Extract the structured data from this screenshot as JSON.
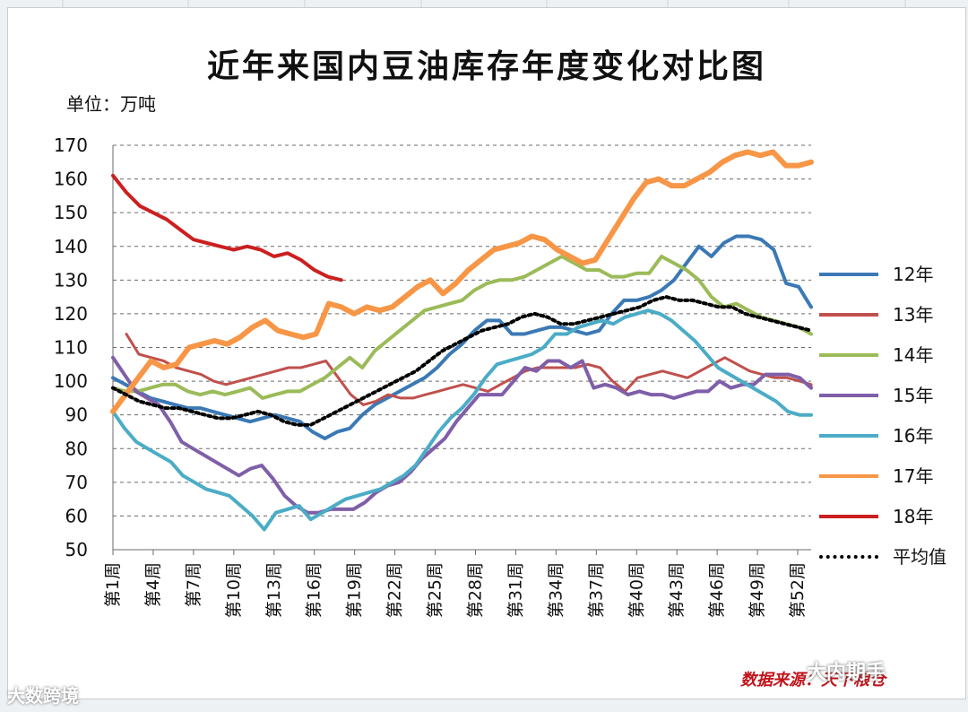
{
  "chart_data": {
    "type": "line",
    "title": "近年来国内豆油库存年度变化对比图",
    "unit": "单位：万吨",
    "ylim": [
      50,
      170
    ],
    "yticks": [
      50,
      60,
      70,
      80,
      90,
      100,
      110,
      120,
      130,
      140,
      150,
      160,
      170
    ],
    "xlabels": [
      "第1周",
      "第4周",
      "第7周",
      "第10周",
      "第13周",
      "第16周",
      "第19周",
      "第22周",
      "第25周",
      "第28周",
      "第31周",
      "第34周",
      "第37周",
      "第40周",
      "第43周",
      "第46周",
      "第49周",
      "第52周"
    ],
    "xlabel_weeks": [
      1,
      4,
      7,
      10,
      13,
      16,
      19,
      22,
      25,
      28,
      31,
      34,
      37,
      40,
      43,
      46,
      49,
      52
    ],
    "series": [
      {
        "name": "12年",
        "color": "#3b79b5",
        "dashed": false,
        "width": 4,
        "start": 1,
        "values": [
          101,
          99,
          97,
          95,
          94,
          93,
          92,
          92,
          91,
          90,
          89,
          88,
          89,
          90,
          89,
          88,
          85,
          83,
          85,
          86,
          90,
          93,
          95,
          97,
          99,
          101,
          104,
          108,
          111,
          115,
          118,
          118,
          114,
          114,
          115,
          116,
          116,
          115,
          114,
          115,
          120,
          124,
          124,
          125,
          127,
          130,
          135,
          140,
          137,
          141,
          143,
          143,
          142,
          139,
          129,
          128,
          122
        ]
      },
      {
        "name": "13年",
        "color": "#c0504d",
        "dashed": false,
        "width": 3,
        "start": 2,
        "values": [
          114,
          108,
          107,
          106,
          104,
          103,
          102,
          100,
          99,
          100,
          101,
          102,
          103,
          104,
          104,
          105,
          106,
          101,
          96,
          93,
          94,
          96,
          95,
          95,
          96,
          97,
          98,
          99,
          98,
          97,
          99,
          101,
          103,
          104,
          104,
          104,
          104,
          105,
          104,
          100,
          97,
          101,
          102,
          103,
          102,
          101,
          103,
          105,
          107,
          105,
          103,
          102,
          101,
          101,
          100,
          99,
          98
        ]
      },
      {
        "name": "14年",
        "color": "#9bbb59",
        "dashed": false,
        "width": 4,
        "start": 1,
        "values": [
          98,
          97,
          97,
          98,
          99,
          99,
          97,
          96,
          97,
          96,
          97,
          98,
          95,
          96,
          97,
          97,
          99,
          101,
          104,
          107,
          104,
          109,
          112,
          115,
          118,
          121,
          122,
          123,
          124,
          127,
          129,
          130,
          130,
          131,
          133,
          135,
          137,
          135,
          133,
          133,
          131,
          131,
          132,
          132,
          137,
          135,
          133,
          130,
          125,
          122,
          123,
          121,
          119,
          118,
          117,
          116,
          114
        ]
      },
      {
        "name": "15年",
        "color": "#7f5fa8",
        "dashed": false,
        "width": 4,
        "start": 1,
        "values": [
          107,
          102,
          97,
          95,
          93,
          88,
          82,
          80,
          78,
          76,
          74,
          72,
          74,
          75,
          71,
          66,
          63,
          61,
          61,
          62,
          62,
          62,
          64,
          67,
          69,
          70,
          73,
          77,
          80,
          83,
          88,
          92,
          96,
          96,
          96,
          100,
          104,
          103,
          106,
          106,
          104,
          106,
          98,
          99,
          98,
          96,
          97,
          96,
          96,
          95,
          96,
          97,
          97,
          100,
          98,
          99,
          99,
          102,
          102,
          102,
          101,
          98
        ]
      },
      {
        "name": "16年",
        "color": "#4bacc6",
        "dashed": false,
        "width": 4,
        "start": 1,
        "values": [
          91,
          86,
          82,
          80,
          78,
          76,
          72,
          70,
          68,
          67,
          66,
          63,
          60,
          56,
          61,
          62,
          63,
          59,
          61,
          63,
          65,
          66,
          67,
          68,
          70,
          72,
          75,
          80,
          85,
          89,
          92,
          96,
          101,
          105,
          106,
          107,
          108,
          110,
          114,
          114,
          116,
          117,
          118,
          117,
          119,
          120,
          121,
          120,
          118,
          115,
          112,
          108,
          104,
          102,
          100,
          98,
          96,
          94,
          91,
          90,
          90
        ]
      },
      {
        "name": "17年",
        "color": "#f79646",
        "dashed": false,
        "width": 6,
        "start": 1,
        "values": [
          91,
          96,
          101,
          106,
          104,
          105,
          110,
          111,
          112,
          111,
          113,
          116,
          118,
          115,
          114,
          113,
          114,
          123,
          122,
          120,
          122,
          121,
          122,
          125,
          128,
          130,
          126,
          129,
          133,
          136,
          139,
          140,
          141,
          143,
          142,
          139,
          137,
          135,
          136,
          142,
          148,
          154,
          159,
          160,
          158,
          158,
          160,
          162,
          165,
          167,
          168,
          167,
          168,
          164,
          164,
          165
        ]
      },
      {
        "name": "18年",
        "color": "#cc1f1f",
        "dashed": false,
        "width": 4,
        "start": 1,
        "values": [
          161,
          156,
          152,
          150,
          148,
          145,
          142,
          141,
          140,
          139,
          140,
          139,
          137,
          138,
          136,
          133,
          131,
          130
        ]
      },
      {
        "name": "平均值",
        "color": "#000000",
        "dashed": true,
        "width": 4,
        "start": 1,
        "values": [
          98,
          96,
          94,
          93,
          92,
          92,
          91,
          90,
          89,
          89,
          90,
          91,
          90,
          88,
          87,
          87,
          89,
          91,
          93,
          95,
          97,
          99,
          101,
          103,
          106,
          109,
          111,
          113,
          115,
          116,
          117,
          119,
          120,
          119,
          117,
          117,
          118,
          119,
          120,
          121,
          122,
          124,
          125,
          124,
          124,
          123,
          122,
          122,
          120,
          119,
          118,
          117,
          116,
          115
        ]
      }
    ]
  },
  "source": "数据来源：天下粮仓",
  "watermark_left": "大数跨境",
  "watermark_right": "大内期手"
}
